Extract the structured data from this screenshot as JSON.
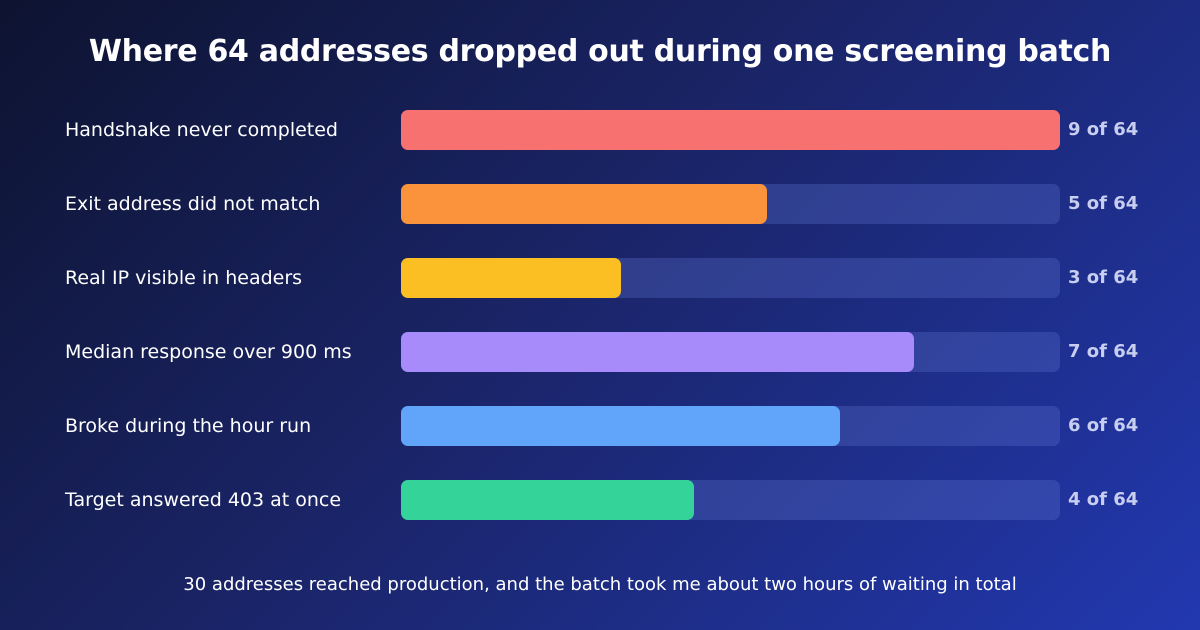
{
  "chart_data": {
    "type": "bar",
    "orientation": "horizontal",
    "title": "Where 64 addresses dropped out during one screening batch",
    "categories": [
      "Handshake never completed",
      "Exit address did not match",
      "Real IP visible in headers",
      "Median response over 900 ms",
      "Broke during the hour run",
      "Target answered 403 at once"
    ],
    "values": [
      9,
      5,
      3,
      7,
      6,
      4
    ],
    "value_labels": [
      "9 of 64",
      "5 of 64",
      "3 of 64",
      "7 of 64",
      "6 of 64",
      "4 of 64"
    ],
    "colors": [
      "#f87171",
      "#fb923c",
      "#fbbf24",
      "#a78bfa",
      "#60a5fa",
      "#34d399"
    ],
    "xlim": [
      0,
      9
    ],
    "grid": false,
    "footnote": "30 addresses reached production, and the batch took me about two hours of waiting in total"
  }
}
